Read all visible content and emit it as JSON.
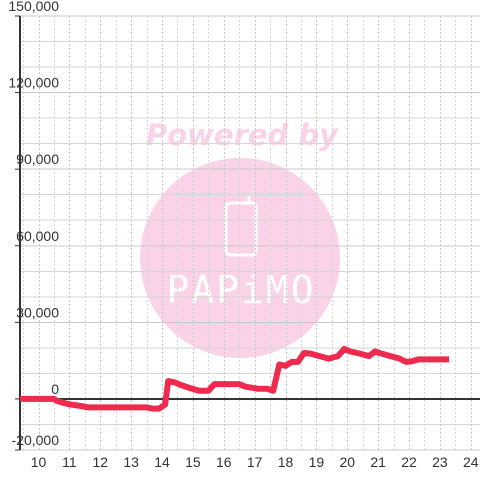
{
  "colors": {
    "series": "#ee2a4e",
    "axis": "#333333",
    "grid_major": "#c8c8c8",
    "grid_minor": "#d6d6d6",
    "watermark": "#fbd3e8"
  },
  "watermark": {
    "powered_by": "Powered by",
    "brand": "PAPiMO",
    "icon": "phone-icon"
  },
  "chart_data": {
    "type": "line",
    "title": "",
    "xlabel": "",
    "ylabel": "",
    "xlim": [
      9.4,
      24.3
    ],
    "ylim": [
      -20000,
      150000
    ],
    "x_ticks": [
      10,
      11,
      12,
      13,
      14,
      15,
      16,
      17,
      18,
      19,
      20,
      21,
      22,
      23,
      24
    ],
    "x_tick_labels": [
      "10",
      "11",
      "12",
      "13",
      "14",
      "15",
      "16",
      "17",
      "18",
      "19",
      "20",
      "21",
      "22",
      "23",
      "24"
    ],
    "y_ticks": [
      -20000,
      0,
      30000,
      60000,
      90000,
      120000,
      150000
    ],
    "y_tick_labels": [
      "-20,000",
      "0",
      "30,000",
      "60,000",
      "90,000",
      "120,000",
      "150,000"
    ],
    "grid": true,
    "series": [
      {
        "x": [
          9.4,
          10.5,
          10.6,
          10.8,
          11.0,
          11.4,
          11.6,
          13.5,
          13.7,
          13.9,
          14.1,
          14.2,
          14.4,
          14.6,
          14.9,
          15.2,
          15.5,
          15.7,
          16.5,
          16.7,
          17.1,
          17.4,
          17.6,
          17.8,
          18.0,
          18.2,
          18.4,
          18.6,
          18.8,
          19.1,
          19.4,
          19.7,
          19.9,
          20.1,
          20.4,
          20.7,
          20.9,
          21.1,
          21.4,
          21.7,
          21.9,
          22.1,
          22.3,
          22.5,
          22.7,
          23.0,
          23.3
        ],
        "y": [
          0,
          0,
          -800,
          -1500,
          -2100,
          -2800,
          -3300,
          -3300,
          -3800,
          -3800,
          -2200,
          7000,
          6500,
          5500,
          4300,
          3200,
          3200,
          5800,
          5800,
          4800,
          4000,
          4000,
          3200,
          13500,
          13000,
          14500,
          14500,
          18000,
          17800,
          16800,
          15800,
          16800,
          19600,
          18600,
          17800,
          16800,
          18600,
          17800,
          16800,
          15800,
          14500,
          14800,
          15500,
          15500,
          15500,
          15500,
          15500
        ]
      }
    ]
  }
}
